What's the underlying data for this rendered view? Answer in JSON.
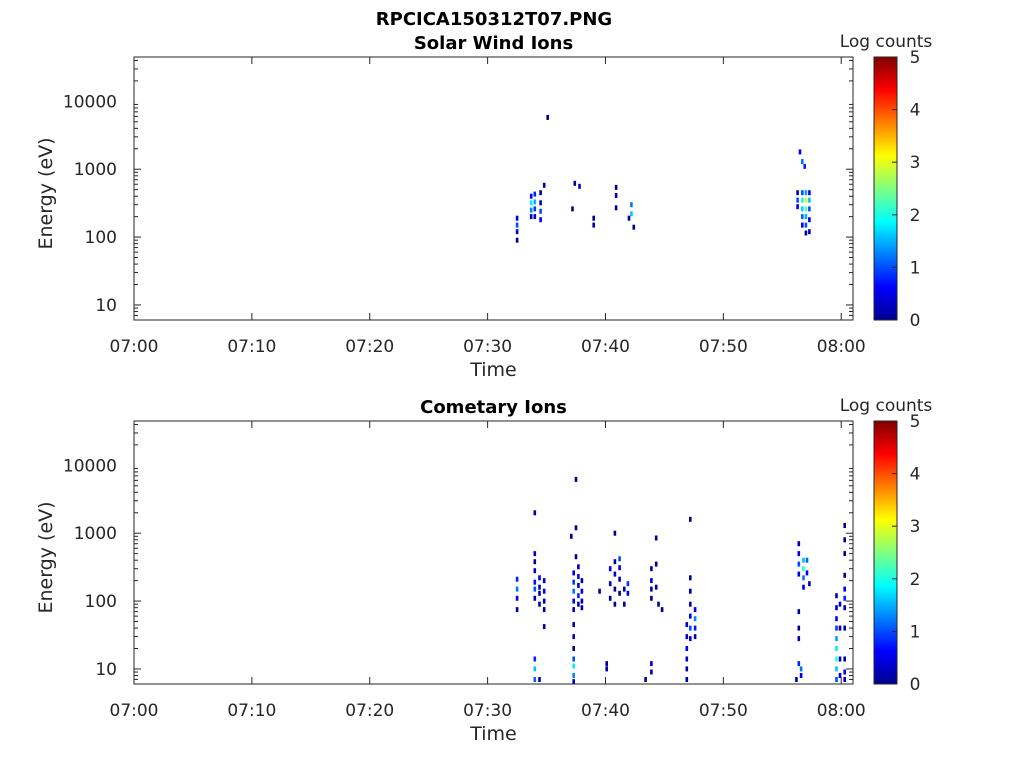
{
  "figure_title": "RPCICA150312T07.PNG",
  "chart_data": [
    {
      "type": "heatmap",
      "title": "Solar Wind Ions",
      "xlabel": "Time",
      "ylabel": "Energy (eV)",
      "y_scale": "log",
      "xlim": [
        "07:00",
        "08:01"
      ],
      "ylim": [
        6,
        45000
      ],
      "x_ticks": [
        "07:00",
        "07:10",
        "07:20",
        "07:30",
        "07:40",
        "07:50",
        "08:00"
      ],
      "y_ticks": [
        "10",
        "100",
        "1000",
        "10000"
      ],
      "colorbar": {
        "label": "Log counts",
        "range": [
          0,
          5
        ],
        "ticks": [
          "0",
          "1",
          "2",
          "3",
          "4",
          "5"
        ],
        "colormap": "jet"
      },
      "cells": [
        {
          "t": 32.5,
          "e": 90,
          "v": 0.1
        },
        {
          "t": 32.5,
          "e": 120,
          "v": 0.4
        },
        {
          "t": 32.5,
          "e": 150,
          "v": 1.0
        },
        {
          "t": 32.5,
          "e": 190,
          "v": 0.5
        },
        {
          "t": 33.7,
          "e": 250,
          "v": 1.3
        },
        {
          "t": 33.7,
          "e": 320,
          "v": 1.8
        },
        {
          "t": 33.7,
          "e": 400,
          "v": 0.6
        },
        {
          "t": 33.7,
          "e": 200,
          "v": 0.4
        },
        {
          "t": 34.0,
          "e": 200,
          "v": 0.3
        },
        {
          "t": 34.0,
          "e": 260,
          "v": 0.9
        },
        {
          "t": 34.0,
          "e": 330,
          "v": 1.5
        },
        {
          "t": 34.0,
          "e": 430,
          "v": 0.8
        },
        {
          "t": 34.5,
          "e": 180,
          "v": 0.6
        },
        {
          "t": 34.5,
          "e": 240,
          "v": 1.0
        },
        {
          "t": 34.5,
          "e": 320,
          "v": 0.3
        },
        {
          "t": 34.5,
          "e": 450,
          "v": 0.2
        },
        {
          "t": 34.8,
          "e": 580,
          "v": 0.2
        },
        {
          "t": 35.1,
          "e": 5800,
          "v": 0.0
        },
        {
          "t": 37.4,
          "e": 620,
          "v": 0.1
        },
        {
          "t": 37.8,
          "e": 560,
          "v": 0.3
        },
        {
          "t": 37.2,
          "e": 260,
          "v": 0.0
        },
        {
          "t": 39.0,
          "e": 150,
          "v": 0.2
        },
        {
          "t": 39.0,
          "e": 190,
          "v": 0.1
        },
        {
          "t": 40.9,
          "e": 410,
          "v": 0.2
        },
        {
          "t": 40.9,
          "e": 540,
          "v": 0.0
        },
        {
          "t": 40.9,
          "e": 270,
          "v": 0.1
        },
        {
          "t": 42.2,
          "e": 220,
          "v": 1.6
        },
        {
          "t": 42.2,
          "e": 300,
          "v": 1.2
        },
        {
          "t": 42.4,
          "e": 140,
          "v": 0.1
        },
        {
          "t": 42.0,
          "e": 190,
          "v": 0.1
        },
        {
          "t": 56.5,
          "e": 1800,
          "v": 0.5
        },
        {
          "t": 56.7,
          "e": 1300,
          "v": 1.2
        },
        {
          "t": 56.9,
          "e": 1100,
          "v": 0.8
        },
        {
          "t": 56.3,
          "e": 450,
          "v": 0.2
        },
        {
          "t": 56.3,
          "e": 350,
          "v": 1.0
        },
        {
          "t": 56.3,
          "e": 280,
          "v": 0.5
        },
        {
          "t": 56.7,
          "e": 450,
          "v": 1.0
        },
        {
          "t": 56.7,
          "e": 350,
          "v": 2.0
        },
        {
          "t": 56.7,
          "e": 260,
          "v": 1.7
        },
        {
          "t": 56.7,
          "e": 200,
          "v": 1.1
        },
        {
          "t": 56.7,
          "e": 150,
          "v": 0.6
        },
        {
          "t": 57.0,
          "e": 450,
          "v": 1.4
        },
        {
          "t": 57.0,
          "e": 350,
          "v": 2.9
        },
        {
          "t": 57.0,
          "e": 260,
          "v": 2.3
        },
        {
          "t": 57.0,
          "e": 200,
          "v": 1.5
        },
        {
          "t": 57.0,
          "e": 150,
          "v": 1.0
        },
        {
          "t": 57.0,
          "e": 115,
          "v": 0.2
        },
        {
          "t": 57.3,
          "e": 450,
          "v": 0.6
        },
        {
          "t": 57.3,
          "e": 350,
          "v": 1.6
        },
        {
          "t": 57.3,
          "e": 260,
          "v": 1.0
        },
        {
          "t": 57.3,
          "e": 180,
          "v": 0.5
        },
        {
          "t": 57.3,
          "e": 120,
          "v": 0.3
        }
      ]
    },
    {
      "type": "heatmap",
      "title": "Cometary Ions",
      "xlabel": "Time",
      "ylabel": "Energy (eV)",
      "y_scale": "log",
      "xlim": [
        "07:00",
        "08:01"
      ],
      "ylim": [
        6,
        45000
      ],
      "x_ticks": [
        "07:00",
        "07:10",
        "07:20",
        "07:30",
        "07:40",
        "07:50",
        "08:00"
      ],
      "y_ticks": [
        "10",
        "100",
        "1000",
        "10000"
      ],
      "colorbar": {
        "label": "Log counts",
        "range": [
          0,
          5
        ],
        "ticks": [
          "0",
          "1",
          "2",
          "3",
          "4",
          "5"
        ],
        "colormap": "jet"
      },
      "cells": [
        {
          "t": 32.5,
          "e": 75,
          "v": 0.2
        },
        {
          "t": 32.5,
          "e": 110,
          "v": 0.6
        },
        {
          "t": 32.5,
          "e": 150,
          "v": 1.2
        },
        {
          "t": 32.5,
          "e": 210,
          "v": 0.8
        },
        {
          "t": 34.0,
          "e": 2000,
          "v": 0.1
        },
        {
          "t": 34.0,
          "e": 500,
          "v": 0.3
        },
        {
          "t": 34.0,
          "e": 380,
          "v": 0.1
        },
        {
          "t": 34.0,
          "e": 280,
          "v": 0.4
        },
        {
          "t": 34.0,
          "e": 190,
          "v": 0.7
        },
        {
          "t": 34.0,
          "e": 150,
          "v": 1.0
        },
        {
          "t": 34.0,
          "e": 110,
          "v": 0.2
        },
        {
          "t": 34.4,
          "e": 220,
          "v": 0.5
        },
        {
          "t": 34.4,
          "e": 160,
          "v": 0.3
        },
        {
          "t": 34.4,
          "e": 130,
          "v": 0.2
        },
        {
          "t": 34.4,
          "e": 90,
          "v": 0.1
        },
        {
          "t": 34.8,
          "e": 200,
          "v": 0.3
        },
        {
          "t": 34.8,
          "e": 140,
          "v": 0.5
        },
        {
          "t": 34.8,
          "e": 100,
          "v": 0.2
        },
        {
          "t": 34.8,
          "e": 75,
          "v": 0.1
        },
        {
          "t": 34.8,
          "e": 42,
          "v": 0.1
        },
        {
          "t": 34.0,
          "e": 14,
          "v": 0.8
        },
        {
          "t": 34.0,
          "e": 10,
          "v": 1.6
        },
        {
          "t": 34.0,
          "e": 7,
          "v": 1.1
        },
        {
          "t": 34.4,
          "e": 7,
          "v": 0.3
        },
        {
          "t": 37.1,
          "e": 900,
          "v": 0.1
        },
        {
          "t": 37.5,
          "e": 6200,
          "v": 0.0
        },
        {
          "t": 37.5,
          "e": 1200,
          "v": 0.2
        },
        {
          "t": 37.5,
          "e": 450,
          "v": 0.1
        },
        {
          "t": 37.3,
          "e": 260,
          "v": 0.5
        },
        {
          "t": 37.3,
          "e": 190,
          "v": 0.9
        },
        {
          "t": 37.3,
          "e": 140,
          "v": 1.2
        },
        {
          "t": 37.3,
          "e": 100,
          "v": 0.6
        },
        {
          "t": 37.3,
          "e": 75,
          "v": 0.3
        },
        {
          "t": 37.7,
          "e": 320,
          "v": 0.3
        },
        {
          "t": 37.7,
          "e": 230,
          "v": 0.7
        },
        {
          "t": 37.7,
          "e": 170,
          "v": 0.4
        },
        {
          "t": 37.7,
          "e": 120,
          "v": 0.8
        },
        {
          "t": 37.7,
          "e": 90,
          "v": 0.2
        },
        {
          "t": 38.0,
          "e": 200,
          "v": 0.2
        },
        {
          "t": 38.0,
          "e": 140,
          "v": 0.4
        },
        {
          "t": 38.0,
          "e": 100,
          "v": 0.1
        },
        {
          "t": 38.0,
          "e": 80,
          "v": 0.1
        },
        {
          "t": 37.3,
          "e": 45,
          "v": 0.2
        },
        {
          "t": 37.3,
          "e": 30,
          "v": 0.3
        },
        {
          "t": 37.3,
          "e": 20,
          "v": 0.1
        },
        {
          "t": 37.3,
          "e": 14,
          "v": 1.0
        },
        {
          "t": 37.3,
          "e": 11,
          "v": 1.8
        },
        {
          "t": 37.3,
          "e": 8,
          "v": 1.3
        },
        {
          "t": 37.3,
          "e": 6.5,
          "v": 0.4
        },
        {
          "t": 39.5,
          "e": 140,
          "v": 0.1
        },
        {
          "t": 40.1,
          "e": 12,
          "v": 0.2
        },
        {
          "t": 40.1,
          "e": 10,
          "v": 0.1
        },
        {
          "t": 40.4,
          "e": 300,
          "v": 0.5
        },
        {
          "t": 40.4,
          "e": 180,
          "v": 0.2
        },
        {
          "t": 40.4,
          "e": 110,
          "v": 0.1
        },
        {
          "t": 40.8,
          "e": 1000,
          "v": 0.1
        },
        {
          "t": 40.8,
          "e": 380,
          "v": 0.2
        },
        {
          "t": 40.8,
          "e": 250,
          "v": 0.3
        },
        {
          "t": 40.8,
          "e": 150,
          "v": 0.2
        },
        {
          "t": 40.8,
          "e": 90,
          "v": 0.1
        },
        {
          "t": 41.2,
          "e": 420,
          "v": 1.0
        },
        {
          "t": 41.2,
          "e": 310,
          "v": 0.4
        },
        {
          "t": 41.2,
          "e": 210,
          "v": 0.2
        },
        {
          "t": 41.2,
          "e": 130,
          "v": 0.1
        },
        {
          "t": 41.6,
          "e": 150,
          "v": 0.1
        },
        {
          "t": 41.6,
          "e": 90,
          "v": 0.1
        },
        {
          "t": 41.9,
          "e": 180,
          "v": 0.9
        },
        {
          "t": 41.9,
          "e": 130,
          "v": 0.5
        },
        {
          "t": 43.4,
          "e": 7,
          "v": 0.1
        },
        {
          "t": 43.9,
          "e": 12,
          "v": 0.4
        },
        {
          "t": 43.9,
          "e": 9,
          "v": 0.2
        },
        {
          "t": 43.9,
          "e": 300,
          "v": 0.2
        },
        {
          "t": 43.9,
          "e": 200,
          "v": 0.5
        },
        {
          "t": 43.9,
          "e": 150,
          "v": 0.2
        },
        {
          "t": 43.9,
          "e": 110,
          "v": 0.1
        },
        {
          "t": 44.3,
          "e": 850,
          "v": 0.0
        },
        {
          "t": 44.3,
          "e": 350,
          "v": 0.1
        },
        {
          "t": 44.3,
          "e": 160,
          "v": 0.1
        },
        {
          "t": 44.5,
          "e": 90,
          "v": 0.1
        },
        {
          "t": 44.8,
          "e": 75,
          "v": 0.1
        },
        {
          "t": 46.9,
          "e": 45,
          "v": 0.3
        },
        {
          "t": 46.9,
          "e": 30,
          "v": 0.5
        },
        {
          "t": 46.9,
          "e": 20,
          "v": 0.6
        },
        {
          "t": 46.9,
          "e": 14,
          "v": 0.3
        },
        {
          "t": 46.9,
          "e": 10,
          "v": 0.2
        },
        {
          "t": 46.9,
          "e": 7,
          "v": 0.2
        },
        {
          "t": 47.2,
          "e": 1600,
          "v": 0.0
        },
        {
          "t": 47.2,
          "e": 220,
          "v": 0.1
        },
        {
          "t": 47.2,
          "e": 140,
          "v": 0.2
        },
        {
          "t": 47.2,
          "e": 90,
          "v": 0.3
        },
        {
          "t": 47.2,
          "e": 60,
          "v": 0.5
        },
        {
          "t": 47.2,
          "e": 40,
          "v": 1.0
        },
        {
          "t": 47.2,
          "e": 28,
          "v": 0.4
        },
        {
          "t": 47.6,
          "e": 75,
          "v": 0.5
        },
        {
          "t": 47.6,
          "e": 55,
          "v": 1.3
        },
        {
          "t": 47.6,
          "e": 40,
          "v": 0.7
        },
        {
          "t": 47.6,
          "e": 30,
          "v": 0.2
        },
        {
          "t": 56.4,
          "e": 700,
          "v": 0.2
        },
        {
          "t": 56.4,
          "e": 500,
          "v": 0.6
        },
        {
          "t": 56.4,
          "e": 350,
          "v": 1.0
        },
        {
          "t": 56.4,
          "e": 250,
          "v": 0.5
        },
        {
          "t": 56.8,
          "e": 400,
          "v": 1.6
        },
        {
          "t": 56.8,
          "e": 300,
          "v": 2.0
        },
        {
          "t": 56.8,
          "e": 220,
          "v": 1.2
        },
        {
          "t": 56.8,
          "e": 160,
          "v": 0.4
        },
        {
          "t": 57.1,
          "e": 400,
          "v": 1.1
        },
        {
          "t": 57.1,
          "e": 260,
          "v": 0.5
        },
        {
          "t": 57.3,
          "e": 180,
          "v": 0.2
        },
        {
          "t": 56.4,
          "e": 70,
          "v": 0.2
        },
        {
          "t": 56.4,
          "e": 40,
          "v": 0.1
        },
        {
          "t": 56.4,
          "e": 28,
          "v": 0.2
        },
        {
          "t": 56.4,
          "e": 12,
          "v": 0.8
        },
        {
          "t": 56.6,
          "e": 10,
          "v": 1.2
        },
        {
          "t": 56.6,
          "e": 8,
          "v": 0.5
        },
        {
          "t": 56.2,
          "e": 7,
          "v": 0.2
        },
        {
          "t": 59.6,
          "e": 120,
          "v": 0.2
        },
        {
          "t": 59.6,
          "e": 80,
          "v": 0.3
        },
        {
          "t": 59.6,
          "e": 55,
          "v": 0.6
        },
        {
          "t": 59.6,
          "e": 40,
          "v": 0.9
        },
        {
          "t": 59.6,
          "e": 28,
          "v": 1.4
        },
        {
          "t": 59.6,
          "e": 20,
          "v": 1.8
        },
        {
          "t": 59.6,
          "e": 14,
          "v": 2.1
        },
        {
          "t": 59.6,
          "e": 10,
          "v": 1.6
        },
        {
          "t": 59.6,
          "e": 7,
          "v": 1.0
        },
        {
          "t": 59.9,
          "e": 90,
          "v": 0.4
        },
        {
          "t": 59.9,
          "e": 40,
          "v": 0.2
        },
        {
          "t": 59.9,
          "e": 14,
          "v": 0.3
        },
        {
          "t": 59.9,
          "e": 8,
          "v": 0.5
        },
        {
          "t": 60.3,
          "e": 1300,
          "v": 0.0
        },
        {
          "t": 60.3,
          "e": 800,
          "v": 0.0
        },
        {
          "t": 60.3,
          "e": 500,
          "v": 0.1
        },
        {
          "t": 60.3,
          "e": 240,
          "v": 0.1
        },
        {
          "t": 60.3,
          "e": 150,
          "v": 0.5
        },
        {
          "t": 60.3,
          "e": 110,
          "v": 0.8
        },
        {
          "t": 60.3,
          "e": 80,
          "v": 0.3
        },
        {
          "t": 60.3,
          "e": 40,
          "v": 0.2
        },
        {
          "t": 60.3,
          "e": 14,
          "v": 0.2
        },
        {
          "t": 60.3,
          "e": 9,
          "v": 0.6
        },
        {
          "t": 60.3,
          "e": 7,
          "v": 0.3
        }
      ]
    }
  ]
}
